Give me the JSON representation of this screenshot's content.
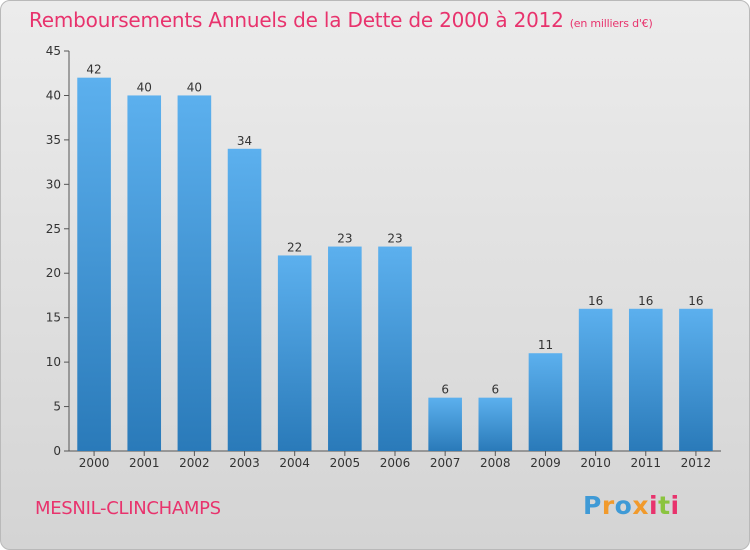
{
  "header": {
    "title": "Remboursements Annuels de la Dette de 2000 à 2012",
    "subtitle": "(en milliers d'€)"
  },
  "commune": "MESNIL-CLINCHAMPS",
  "logo": {
    "text": "Proxiti",
    "colors": [
      "#3f9ad6",
      "#f19a2b",
      "#8bc43f",
      "#e8336d"
    ]
  },
  "chart_data": {
    "type": "bar",
    "categories": [
      "2000",
      "2001",
      "2002",
      "2003",
      "2004",
      "2005",
      "2006",
      "2007",
      "2008",
      "2009",
      "2010",
      "2011",
      "2012"
    ],
    "values": [
      42,
      40,
      40,
      34,
      22,
      23,
      23,
      6,
      6,
      11,
      16,
      16,
      16
    ],
    "ylim": [
      0,
      45
    ],
    "yticks": [
      0,
      5,
      10,
      15,
      20,
      25,
      30,
      35,
      40,
      45
    ],
    "grid": false,
    "bar_color": "#4aa2e4",
    "bar_color_dark": "#2877b8"
  }
}
